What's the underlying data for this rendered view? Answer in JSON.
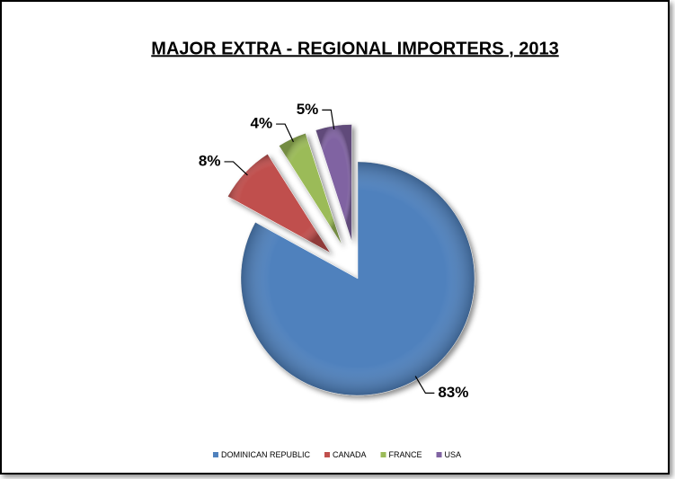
{
  "chart_data": {
    "type": "pie",
    "title": "MAJOR EXTRA - REGIONAL IMPORTERS , 2013",
    "categories": [
      "DOMINICAN REPUBLIC",
      "CANADA",
      "FRANCE",
      "USA"
    ],
    "values": [
      83,
      8,
      4,
      5
    ],
    "value_labels": [
      "83%",
      "8%",
      "4%",
      "5%"
    ],
    "colors": [
      "#4f81bd",
      "#c0504d",
      "#9bbb59",
      "#8064a2"
    ],
    "legend": "bottom"
  }
}
